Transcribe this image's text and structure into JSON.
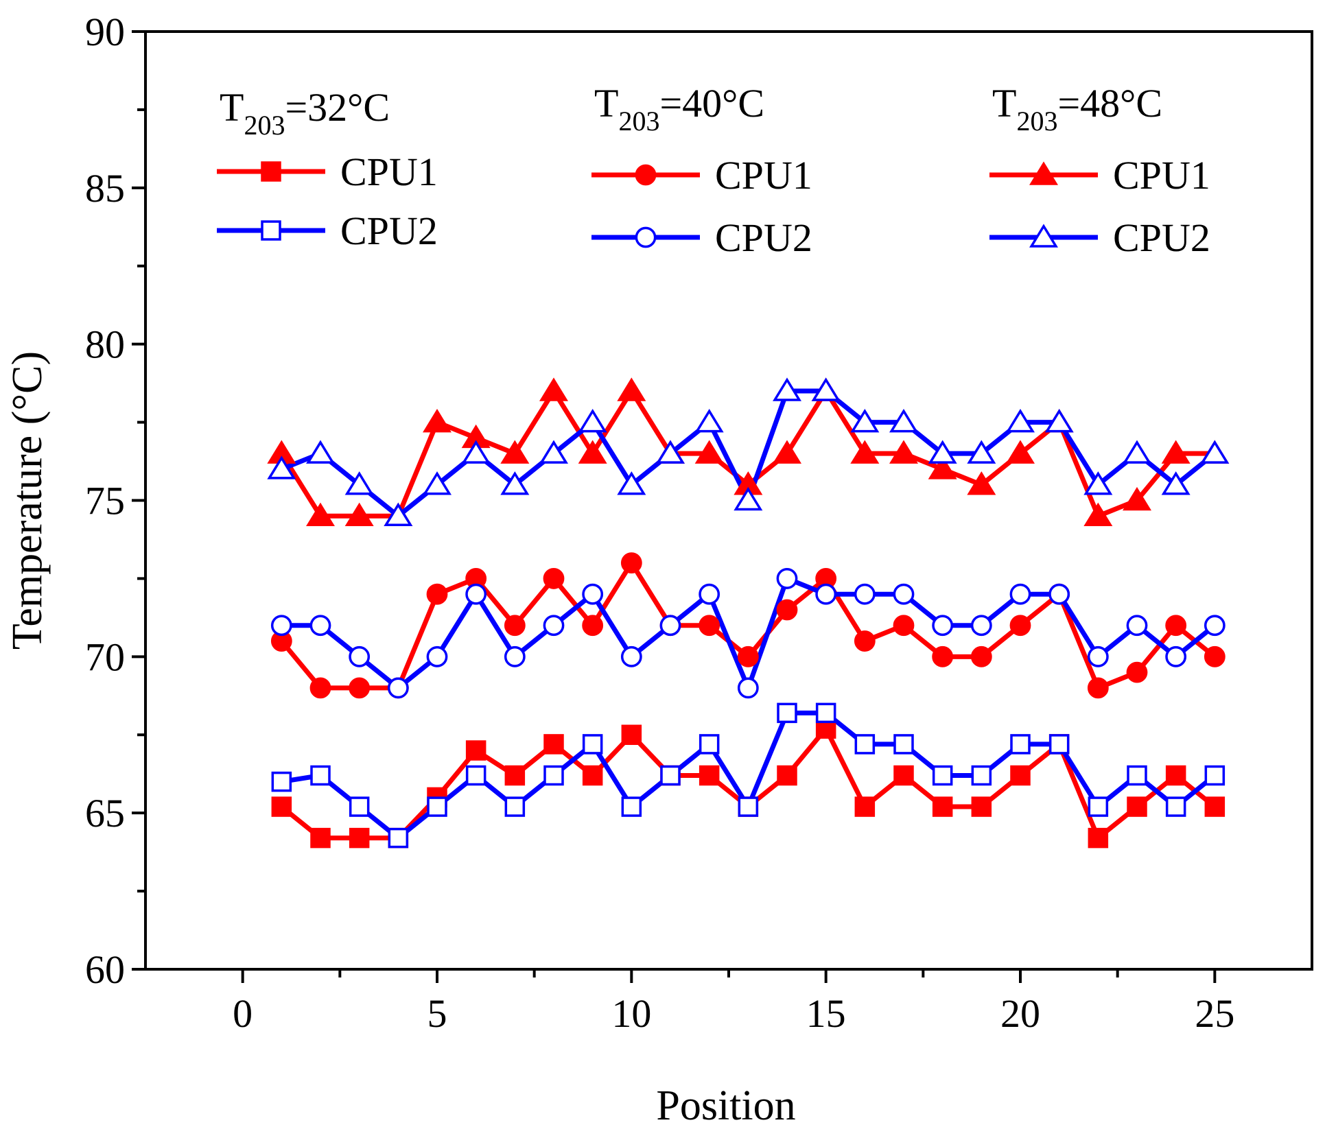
{
  "chart_data": {
    "type": "line",
    "title": "",
    "xlabel": "Position",
    "ylabel": "Temperature (°C)",
    "xlim": [
      -2.5,
      27.5
    ],
    "ylim": [
      60,
      90
    ],
    "x_ticks": [
      0,
      5,
      10,
      15,
      20,
      25
    ],
    "y_ticks": [
      60,
      65,
      70,
      75,
      80,
      85,
      90
    ],
    "grid": false,
    "legend_position": "top",
    "legend_groups": [
      {
        "title_main": "T",
        "title_sub": "203",
        "title_rest": "=32°C"
      },
      {
        "title_main": "T",
        "title_sub": "203",
        "title_rest": "=40°C"
      },
      {
        "title_main": "T",
        "title_sub": "203",
        "title_rest": "=48°C"
      }
    ],
    "x": [
      1,
      2,
      3,
      4,
      5,
      6,
      7,
      8,
      9,
      10,
      11,
      12,
      13,
      14,
      15,
      16,
      17,
      18,
      19,
      20,
      21,
      22,
      23,
      24,
      25
    ],
    "series": [
      {
        "name": "CPU1",
        "group": "T203=32°C",
        "color": "#ff0000",
        "marker": "square",
        "filled": true,
        "values": [
          65.2,
          64.2,
          64.2,
          64.2,
          65.5,
          67.0,
          66.2,
          67.2,
          66.2,
          67.5,
          66.2,
          66.2,
          65.2,
          66.2,
          67.7,
          65.2,
          66.2,
          65.2,
          65.2,
          66.2,
          67.2,
          64.2,
          65.2,
          66.2,
          65.2
        ]
      },
      {
        "name": "CPU2",
        "group": "T203=32°C",
        "color": "#0000ff",
        "marker": "square",
        "filled": false,
        "values": [
          66.0,
          66.2,
          65.2,
          64.2,
          65.2,
          66.2,
          65.2,
          66.2,
          67.2,
          65.2,
          66.2,
          67.2,
          65.2,
          68.2,
          68.2,
          67.2,
          67.2,
          66.2,
          66.2,
          67.2,
          67.2,
          65.2,
          66.2,
          65.2,
          66.2
        ]
      },
      {
        "name": "CPU1",
        "group": "T203=40°C",
        "color": "#ff0000",
        "marker": "circle",
        "filled": true,
        "values": [
          70.5,
          69.0,
          69.0,
          69.0,
          72.0,
          72.5,
          71.0,
          72.5,
          71.0,
          73.0,
          71.0,
          71.0,
          70.0,
          71.5,
          72.5,
          70.5,
          71.0,
          70.0,
          70.0,
          71.0,
          72.0,
          69.0,
          69.5,
          71.0,
          70.0
        ]
      },
      {
        "name": "CPU2",
        "group": "T203=40°C",
        "color": "#0000ff",
        "marker": "circle",
        "filled": false,
        "values": [
          71.0,
          71.0,
          70.0,
          69.0,
          70.0,
          72.0,
          70.0,
          71.0,
          72.0,
          70.0,
          71.0,
          72.0,
          69.0,
          72.5,
          72.0,
          72.0,
          72.0,
          71.0,
          71.0,
          72.0,
          72.0,
          70.0,
          71.0,
          70.0,
          71.0
        ]
      },
      {
        "name": "CPU1",
        "group": "T203=48°C",
        "color": "#ff0000",
        "marker": "triangle",
        "filled": true,
        "values": [
          76.5,
          74.5,
          74.5,
          74.5,
          77.5,
          77.0,
          76.5,
          78.5,
          76.5,
          78.5,
          76.5,
          76.5,
          75.5,
          76.5,
          78.5,
          76.5,
          76.5,
          76.0,
          75.5,
          76.5,
          77.5,
          74.5,
          75.0,
          76.5,
          76.5
        ]
      },
      {
        "name": "CPU2",
        "group": "T203=48°C",
        "color": "#0000ff",
        "marker": "triangle",
        "filled": false,
        "values": [
          76.0,
          76.5,
          75.5,
          74.5,
          75.5,
          76.5,
          75.5,
          76.5,
          77.5,
          75.5,
          76.5,
          77.5,
          75.0,
          78.5,
          78.5,
          77.5,
          77.5,
          76.5,
          76.5,
          77.5,
          77.5,
          75.5,
          76.5,
          75.5,
          76.5
        ]
      }
    ]
  }
}
